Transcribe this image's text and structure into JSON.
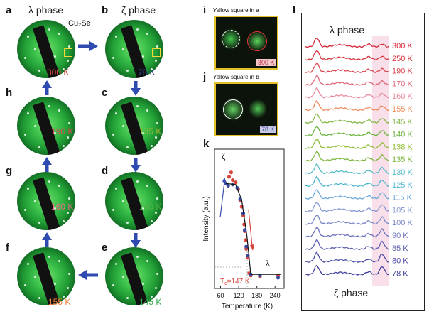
{
  "panel_letters": [
    "a",
    "b",
    "c",
    "d",
    "e",
    "f",
    "g",
    "h",
    "i",
    "j",
    "k",
    "l"
  ],
  "panel_a": {
    "phase_title": "λ phase",
    "annotation": "Cu₂Se",
    "temp": "300 K",
    "temp_color": "#d9453c"
  },
  "panel_b": {
    "phase_title": "ζ phase",
    "temp": "78 K",
    "temp_color": "#3a4aa0"
  },
  "panel_c": {
    "temp": "135 K",
    "temp_color": "#9ab82e"
  },
  "panel_d": {
    "temp": "140 K",
    "temp_color": "#4fb344"
  },
  "panel_e": {
    "temp": "145 K",
    "temp_color": "#2fa74c"
  },
  "panel_f": {
    "temp": "155 K",
    "temp_color": "#f0823a"
  },
  "panel_g": {
    "temp": "160 K",
    "temp_color": "#e66f86"
  },
  "panel_h": {
    "temp": "190 K",
    "temp_color": "#d64a56"
  },
  "panel_i": {
    "title": "Yellow square in a",
    "temp": "300 K"
  },
  "panel_j": {
    "title": "Yellow square in b",
    "temp": "78 K"
  },
  "panel_k": {
    "ylabel": "Intensity (a.u.)",
    "xlabel": "Temperature (K)",
    "xticks": [
      "60",
      "120",
      "180",
      "240"
    ],
    "zeta_label": "ζ",
    "lambda_label": "λ",
    "tc_label": "T",
    "tc_sub": "c",
    "tc_value": "=147 K"
  },
  "panel_l": {
    "top_label": "λ phase",
    "bottom_label": "ζ phase",
    "temps": [
      "300 K",
      "250 K",
      "190 K",
      "170 K",
      "160 K",
      "155 K",
      "145 K",
      "140 K",
      "138 K",
      "135 K",
      "130 K",
      "125 K",
      "115 K",
      "105 K",
      "100 K",
      "90 K",
      "85 K",
      "80 K",
      "78 K"
    ],
    "colors": [
      "#d6283a",
      "#d8343e",
      "#db4a52",
      "#e16a7c",
      "#e98a9c",
      "#ee8a5a",
      "#86b94a",
      "#6cb542",
      "#92bf3a",
      "#7fb840",
      "#57bec7",
      "#4ab3cf",
      "#6aa7d9",
      "#8797d2",
      "#7b86c9",
      "#6d72be",
      "#5d60b2",
      "#4c4da7",
      "#3e3c9c"
    ]
  },
  "chart_data": {
    "type": "scatter",
    "title": "",
    "xlabel": "Temperature (K)",
    "ylabel": "Intensity (a.u.)",
    "xlim": [
      40,
      270
    ],
    "xticks": [
      60,
      120,
      180,
      240
    ],
    "series": [
      {
        "name": "",
        "color": "#d9453c",
        "x": [
          88,
          95,
          100,
          110,
          118,
          125,
          130,
          135,
          138,
          140,
          143,
          145,
          150,
          155,
          160,
          190,
          250
        ],
        "y": [
          0.93,
          0.97,
          0.9,
          0.88,
          0.82,
          0.72,
          0.66,
          0.58,
          0.5,
          0.44,
          0.36,
          0.28,
          0.2,
          0.06,
          0.04,
          0.03,
          0.04
        ]
      },
      {
        "name": "",
        "color": "#3a4aa0",
        "x": [
          78,
          85,
          100,
          115,
          125,
          135,
          140,
          145,
          150,
          160,
          190,
          250
        ],
        "y": [
          0.87,
          0.85,
          0.86,
          0.83,
          0.73,
          0.6,
          0.45,
          0.3,
          0.22,
          0.05,
          0.04,
          0.02
        ]
      }
    ],
    "fit_line": {
      "x": [
        78,
        110,
        130,
        147,
        160,
        260
      ],
      "y": [
        0.87,
        0.86,
        0.72,
        0.4,
        0.05,
        0.05
      ]
    },
    "annotations": [
      "ζ",
      "λ",
      "Tc=147 K"
    ]
  }
}
